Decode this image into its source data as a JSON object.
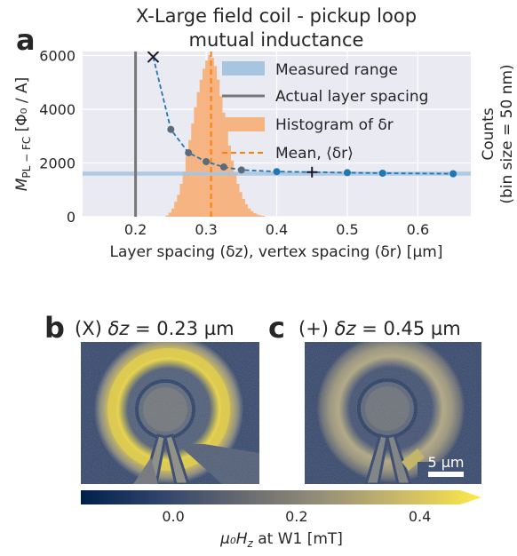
{
  "panel_labels": {
    "a": "a",
    "b": "b",
    "c": "c"
  },
  "chart_data": [
    {
      "type": "line",
      "title": "X-Large field coil - pickup loop",
      "subtitle": "mutual inductance",
      "xlabel": "Layer spacing (δz), vertex spacing (δr) [µm]",
      "ylabel": "M_PL−FC [Φ₀ / A]",
      "ylabel_main": "M",
      "ylabel_sub": "PL − FC",
      "ylabel_rest": " [Φ₀ / A]",
      "y2label_line1": "Counts",
      "y2label_line2": "(bin size = 50 nm)",
      "xlim": [
        0.125,
        0.675
      ],
      "ylim": [
        0,
        6150
      ],
      "x_ticks": [
        0.2,
        0.3,
        0.4,
        0.5,
        0.6
      ],
      "x_tick_labels": [
        "0.2",
        "0.3",
        "0.4",
        "0.5",
        "0.6"
      ],
      "y_ticks": [
        0,
        2000,
        4000,
        6000
      ],
      "y_tick_labels": [
        "0",
        "2000",
        "4000",
        "6000"
      ],
      "grid": true,
      "legend_position": "top-right",
      "series": [
        {
          "name": "mutual inductance",
          "color": "#1f77b4",
          "x": [
            0.225,
            0.25,
            0.275,
            0.3,
            0.325,
            0.35,
            0.4,
            0.45,
            0.5,
            0.55,
            0.65
          ],
          "y": [
            5950,
            3250,
            2380,
            2050,
            1850,
            1740,
            1680,
            1660,
            1640,
            1620,
            1600
          ]
        }
      ],
      "markers": [
        {
          "symbol": "X",
          "x": 0.225,
          "y": 5950
        },
        {
          "symbol": "+",
          "x": 0.45,
          "y": 1660
        }
      ],
      "measured_range": {
        "label": "Measured range",
        "y": [
          1530,
          1680
        ],
        "color": "#a7c4e0"
      },
      "actual_layer_spacing": {
        "label": "Actual layer spacing",
        "x": 0.2,
        "color": "#777777"
      },
      "histogram": {
        "label": "Histogram of δr",
        "color": "#f6b482",
        "bin_centers": [
          0.245,
          0.249,
          0.253,
          0.257,
          0.261,
          0.265,
          0.269,
          0.273,
          0.277,
          0.281,
          0.285,
          0.289,
          0.293,
          0.297,
          0.301,
          0.305,
          0.309,
          0.313,
          0.317,
          0.321,
          0.325,
          0.329,
          0.333,
          0.337,
          0.341,
          0.345,
          0.349,
          0.353,
          0.357,
          0.361,
          0.365,
          0.369,
          0.373,
          0.377,
          0.381
        ],
        "heights": [
          50,
          150,
          300,
          550,
          800,
          1200,
          1650,
          2200,
          2800,
          3400,
          4000,
          4550,
          5000,
          5400,
          5700,
          5900,
          5800,
          5500,
          5000,
          4400,
          3800,
          3200,
          2600,
          2050,
          1600,
          1200,
          900,
          650,
          450,
          300,
          200,
          130,
          80,
          50,
          30
        ]
      },
      "mean": {
        "label": "Mean, ⟨δr⟩",
        "x": 0.307,
        "color": "#ff7f0e"
      },
      "legend": [
        "Measured range",
        "Actual layer spacing",
        "Histogram of δr",
        "Mean, ⟨δr⟩"
      ]
    },
    {
      "type": "heatmap",
      "title": "(X) δz = 0.23 µm",
      "title_prefix": "(X) ",
      "title_var": "δz",
      "title_rest": " = 0.23 µm"
    },
    {
      "type": "heatmap",
      "title": "(+) δz = 0.45 µm",
      "title_prefix": "(+) ",
      "title_var": "δz",
      "title_rest": " = 0.45 µm",
      "scalebar": "5 µm"
    }
  ],
  "colorbar": {
    "ticks": [
      0.0,
      0.2,
      0.4
    ],
    "tick_labels": [
      "0.0",
      "0.2",
      "0.4"
    ],
    "range": [
      -0.15,
      0.5
    ],
    "label_main": "µ₀H",
    "label_sub": "z",
    "label_rest": " at W1 [mT]",
    "colors": [
      "#00204c",
      "#31446b",
      "#666970",
      "#958f78",
      "#cbba69",
      "#ffe945"
    ]
  }
}
